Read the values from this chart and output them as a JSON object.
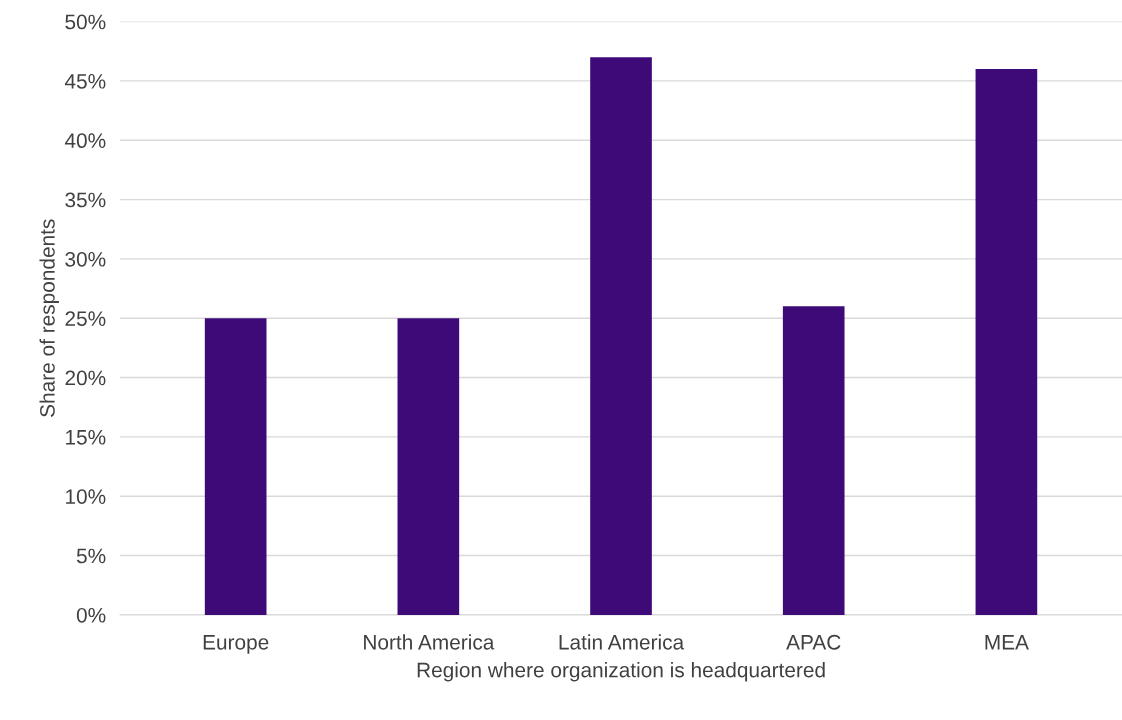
{
  "chart_data": {
    "type": "bar",
    "xlabel": "Region where organization is headquartered",
    "ylabel": "Share of respondents",
    "categories": [
      "Europe",
      "North America",
      "Latin America",
      "APAC",
      "MEA"
    ],
    "values": [
      25,
      25,
      47,
      26,
      46
    ],
    "color": "#3d0a78",
    "ylim": [
      0,
      50
    ],
    "yticks": [
      {
        "value": 0,
        "label": "0%"
      },
      {
        "value": 5,
        "label": "5%"
      },
      {
        "value": 10,
        "label": "10%"
      },
      {
        "value": 15,
        "label": "15%"
      },
      {
        "value": 20,
        "label": "20%"
      },
      {
        "value": 25,
        "label": "25%"
      },
      {
        "value": 30,
        "label": "30%"
      },
      {
        "value": 35,
        "label": "35%"
      },
      {
        "value": 40,
        "label": "40%"
      },
      {
        "value": 45,
        "label": "45%"
      },
      {
        "value": 50,
        "label": "50%"
      }
    ],
    "grid": "y",
    "legend": false
  }
}
